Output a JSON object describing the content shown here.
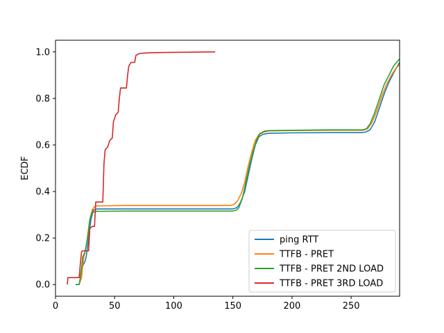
{
  "chart_data": {
    "type": "line",
    "title": "",
    "xlabel": "",
    "ylabel": "ECDF",
    "xlim": [
      0,
      291
    ],
    "ylim": [
      -0.05,
      1.05
    ],
    "x_ticks": [
      0,
      50,
      100,
      150,
      200,
      250
    ],
    "y_ticks": [
      0.0,
      0.2,
      0.4,
      0.6,
      0.8,
      1.0
    ],
    "x_tick_labels": [
      "0",
      "50",
      "100",
      "150",
      "200",
      "250"
    ],
    "y_tick_labels": [
      "0.0",
      "0.2",
      "0.4",
      "0.6",
      "0.8",
      "1.0"
    ],
    "grid": false,
    "legend_position": "lower-right",
    "series": [
      {
        "name": "ping RTT",
        "color": "#1f77b4",
        "points": [
          [
            17,
            0.0
          ],
          [
            20,
            0.0
          ],
          [
            21,
            0.02
          ],
          [
            22,
            0.05
          ],
          [
            23,
            0.08
          ],
          [
            25,
            0.1
          ],
          [
            26,
            0.12
          ],
          [
            28,
            0.2
          ],
          [
            30,
            0.28
          ],
          [
            32,
            0.32
          ],
          [
            35,
            0.325
          ],
          [
            60,
            0.325
          ],
          [
            100,
            0.325
          ],
          [
            150,
            0.325
          ],
          [
            153,
            0.33
          ],
          [
            155,
            0.34
          ],
          [
            157,
            0.36
          ],
          [
            160,
            0.4
          ],
          [
            163,
            0.47
          ],
          [
            166,
            0.54
          ],
          [
            169,
            0.6
          ],
          [
            172,
            0.635
          ],
          [
            175,
            0.645
          ],
          [
            180,
            0.65
          ],
          [
            200,
            0.652
          ],
          [
            230,
            0.653
          ],
          [
            258,
            0.653
          ],
          [
            262,
            0.655
          ],
          [
            266,
            0.665
          ],
          [
            270,
            0.7
          ],
          [
            274,
            0.76
          ],
          [
            278,
            0.82
          ],
          [
            282,
            0.87
          ],
          [
            286,
            0.91
          ],
          [
            291,
            0.955
          ]
        ]
      },
      {
        "name": "TTFB - PRET",
        "color": "#ff7f0e",
        "points": [
          [
            20,
            0.0
          ],
          [
            22,
            0.03
          ],
          [
            23,
            0.08
          ],
          [
            24,
            0.12
          ],
          [
            25,
            0.14
          ],
          [
            27,
            0.2
          ],
          [
            29,
            0.28
          ],
          [
            31,
            0.32
          ],
          [
            33,
            0.335
          ],
          [
            35,
            0.338
          ],
          [
            60,
            0.34
          ],
          [
            100,
            0.34
          ],
          [
            148,
            0.34
          ],
          [
            151,
            0.345
          ],
          [
            154,
            0.36
          ],
          [
            157,
            0.39
          ],
          [
            160,
            0.44
          ],
          [
            163,
            0.51
          ],
          [
            166,
            0.57
          ],
          [
            169,
            0.62
          ],
          [
            172,
            0.645
          ],
          [
            176,
            0.655
          ],
          [
            180,
            0.66
          ],
          [
            200,
            0.662
          ],
          [
            230,
            0.663
          ],
          [
            260,
            0.663
          ],
          [
            264,
            0.67
          ],
          [
            268,
            0.7
          ],
          [
            272,
            0.75
          ],
          [
            276,
            0.81
          ],
          [
            280,
            0.86
          ],
          [
            284,
            0.9
          ],
          [
            288,
            0.93
          ],
          [
            291,
            0.945
          ]
        ]
      },
      {
        "name": "TTFB - PRET 2ND LOAD",
        "color": "#2ca02c",
        "points": [
          [
            18,
            0.0
          ],
          [
            20,
            0.0
          ],
          [
            21,
            0.03
          ],
          [
            22,
            0.07
          ],
          [
            23,
            0.12
          ],
          [
            25,
            0.14
          ],
          [
            27,
            0.2
          ],
          [
            29,
            0.28
          ],
          [
            31,
            0.31
          ],
          [
            35,
            0.315
          ],
          [
            60,
            0.316
          ],
          [
            100,
            0.316
          ],
          [
            150,
            0.316
          ],
          [
            153,
            0.32
          ],
          [
            155,
            0.33
          ],
          [
            158,
            0.37
          ],
          [
            161,
            0.44
          ],
          [
            164,
            0.51
          ],
          [
            167,
            0.57
          ],
          [
            170,
            0.62
          ],
          [
            173,
            0.65
          ],
          [
            177,
            0.66
          ],
          [
            182,
            0.662
          ],
          [
            200,
            0.663
          ],
          [
            230,
            0.665
          ],
          [
            260,
            0.665
          ],
          [
            263,
            0.67
          ],
          [
            266,
            0.69
          ],
          [
            270,
            0.74
          ],
          [
            274,
            0.8
          ],
          [
            278,
            0.86
          ],
          [
            282,
            0.9
          ],
          [
            286,
            0.94
          ],
          [
            291,
            0.97
          ]
        ]
      },
      {
        "name": "TTFB - PRET 3RD LOAD",
        "color": "#d62728",
        "points": [
          [
            10,
            0.0
          ],
          [
            10.5,
            0.03
          ],
          [
            20,
            0.03
          ],
          [
            21,
            0.09
          ],
          [
            22,
            0.14
          ],
          [
            23,
            0.145
          ],
          [
            28,
            0.145
          ],
          [
            29,
            0.24
          ],
          [
            31,
            0.25
          ],
          [
            33,
            0.25
          ],
          [
            34,
            0.355
          ],
          [
            40,
            0.355
          ],
          [
            41,
            0.52
          ],
          [
            42,
            0.58
          ],
          [
            44,
            0.59
          ],
          [
            46,
            0.62
          ],
          [
            48,
            0.63
          ],
          [
            49,
            0.7
          ],
          [
            51,
            0.73
          ],
          [
            53,
            0.74
          ],
          [
            54,
            0.8
          ],
          [
            55,
            0.845
          ],
          [
            60,
            0.845
          ],
          [
            61,
            0.9
          ],
          [
            62,
            0.94
          ],
          [
            64,
            0.955
          ],
          [
            67,
            0.955
          ],
          [
            68,
            0.985
          ],
          [
            71,
            0.993
          ],
          [
            75,
            0.995
          ],
          [
            85,
            0.997
          ],
          [
            100,
            0.998
          ],
          [
            120,
            0.999
          ],
          [
            135,
            1.0
          ]
        ]
      }
    ]
  }
}
